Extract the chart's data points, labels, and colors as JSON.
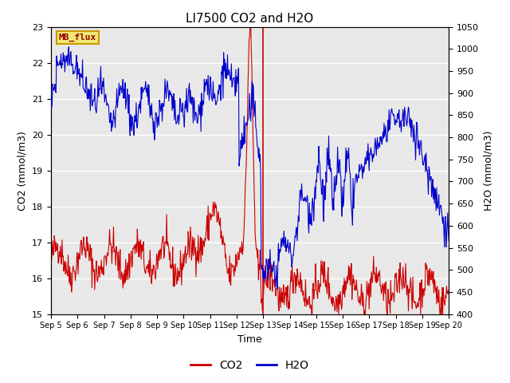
{
  "title": "LI7500 CO2 and H2O",
  "xlabel": "Time",
  "ylabel_left": "CO2 (mmol/m3)",
  "ylabel_right": "H2O (mmol/m3)",
  "ylim_left": [
    15.0,
    23.0
  ],
  "ylim_right": [
    400,
    1050
  ],
  "x_labels": [
    "Sep 5",
    "Sep 6",
    "Sep 7",
    "Sep 8",
    "Sep 9",
    "Sep 10",
    "Sep 11",
    "Sep 12",
    "Sep 13",
    "Sep 14",
    "Sep 15",
    "Sep 16",
    "Sep 17",
    "Sep 18",
    "Sep 19",
    "Sep 20"
  ],
  "annotation_label": "MB_flux",
  "bg_color": "#e8e8e8",
  "co2_color": "#cc0000",
  "h2o_color": "#0000cc",
  "title_fontsize": 11,
  "axis_fontsize": 9,
  "tick_fontsize": 8
}
